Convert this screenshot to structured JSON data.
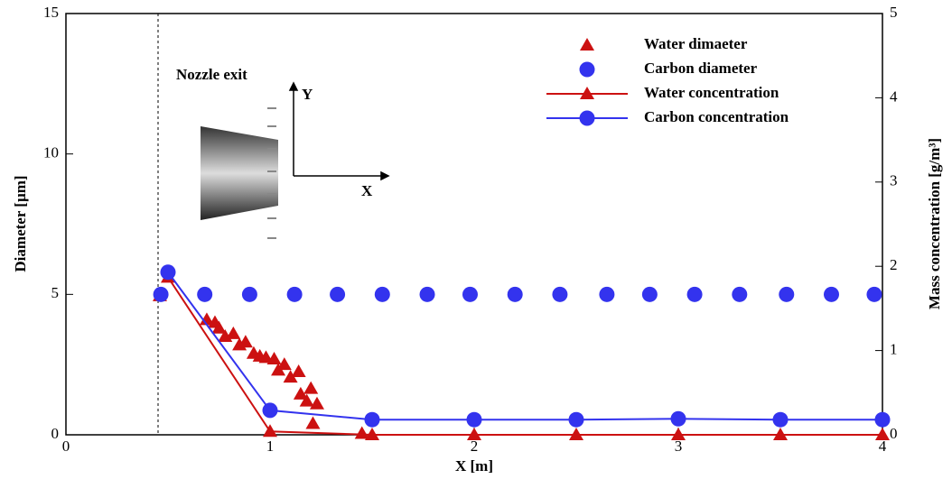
{
  "chart_data": {
    "type": "scatter",
    "xlabel": "X [m]",
    "ylabel": "Diameter [µm]",
    "y2label": "Mass concentration [g/m³]",
    "xlim": [
      0,
      4
    ],
    "xticks": [
      0,
      1,
      2,
      3,
      4
    ],
    "ylim": [
      0,
      15
    ],
    "yticks": [
      0,
      5,
      10,
      15
    ],
    "y2lim": [
      0,
      5
    ],
    "y2ticks": [
      0,
      1,
      2,
      3,
      4,
      5
    ],
    "legend": "top-right",
    "annotations": [
      "Nozzle exit",
      "Y",
      "X"
    ],
    "series": [
      {
        "name": "Water dimaeter",
        "color": "#cc1111",
        "marker": "triangle",
        "line": false,
        "x": [
          0.46,
          0.69,
          0.73,
          0.75,
          0.78,
          0.82,
          0.85,
          0.88,
          0.92,
          0.95,
          0.98,
          1.02,
          1.04,
          1.07,
          1.1,
          1.14,
          1.15,
          1.18,
          1.2,
          1.23,
          1.21,
          1.45
        ],
        "values": [
          4.95,
          4.1,
          4.0,
          3.8,
          3.5,
          3.6,
          3.2,
          3.3,
          2.9,
          2.8,
          2.75,
          2.7,
          2.3,
          2.5,
          2.05,
          2.25,
          1.45,
          1.2,
          1.65,
          1.1,
          0.4,
          0.05
        ]
      },
      {
        "name": "Carbon diameter",
        "color": "#3333ee",
        "marker": "circle",
        "line": false,
        "x": [
          0.465,
          0.68,
          0.9,
          1.12,
          1.33,
          1.55,
          1.77,
          1.98,
          2.2,
          2.42,
          2.65,
          2.86,
          3.08,
          3.3,
          3.53,
          3.75,
          3.96
        ],
        "values": [
          5,
          5,
          5,
          5,
          5,
          5,
          5,
          5,
          5,
          5,
          5,
          5,
          5,
          5,
          5,
          5,
          5
        ]
      },
      {
        "name": "Water concentration",
        "color": "#cc1111",
        "marker": "triangle",
        "line": true,
        "axis": "y2",
        "x": [
          0.5,
          1,
          1.5,
          2,
          2.5,
          3,
          3.5,
          4
        ],
        "values": [
          1.87,
          0.04,
          0,
          0,
          0,
          0,
          0,
          0
        ]
      },
      {
        "name": "Carbon concentration",
        "color": "#3333ee",
        "marker": "circle",
        "line": true,
        "axis": "y2",
        "x": [
          0.5,
          1,
          1.5,
          2,
          2.5,
          3,
          3.5,
          4
        ],
        "values": [
          1.93,
          0.29,
          0.18,
          0.18,
          0.18,
          0.19,
          0.18,
          0.18
        ]
      }
    ]
  }
}
